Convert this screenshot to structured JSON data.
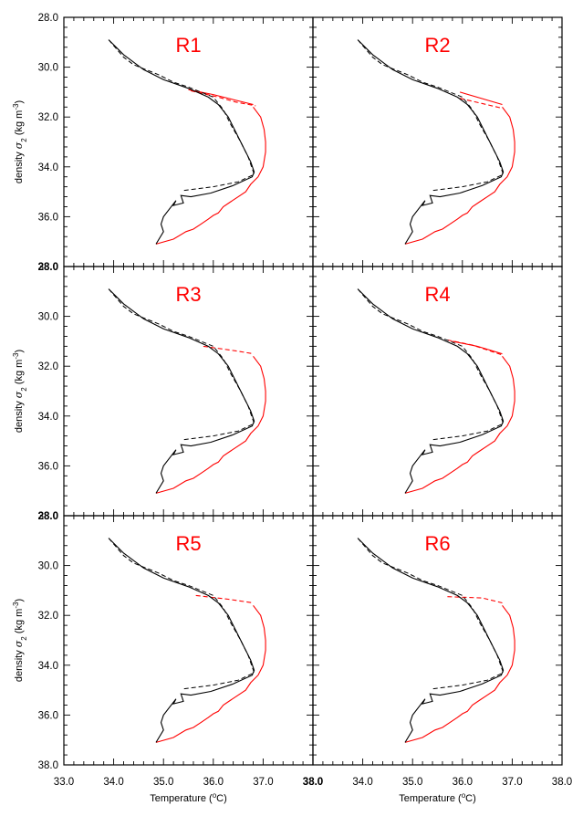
{
  "chart_data": {
    "type": "line",
    "layout": "3x2 panel grid",
    "xlabel": "Temperature (°C)",
    "xlabel_prefix": "Temperature (",
    "xlabel_unit": "o",
    "xlabel_suffix": "C)",
    "ylabel": "density σ₂ (kg m⁻³)",
    "ylabel_prefix": "density ",
    "ylabel_sigma": "σ",
    "ylabel_sub": "2",
    "ylabel_mid": " (kg m",
    "ylabel_sup": "-3",
    "ylabel_end": ")",
    "xlim": [
      33.0,
      38.0
    ],
    "ylim": [
      28.0,
      38.0
    ],
    "y_reversed": true,
    "xticks": [
      "33.0",
      "34.0",
      "35.0",
      "36.0",
      "37.0",
      "38.0"
    ],
    "yticks": [
      "28.0",
      "30.0",
      "32.0",
      "34.0",
      "36.0",
      "38.0"
    ],
    "grid": false,
    "colors": {
      "black_series": "#000000",
      "red_series": "#ff0000"
    },
    "common_black_solid": [
      [
        33.9,
        28.9
      ],
      [
        34.2,
        29.5
      ],
      [
        34.6,
        30.1
      ],
      [
        35.0,
        30.5
      ],
      [
        35.5,
        30.85
      ],
      [
        35.9,
        31.2
      ],
      [
        36.1,
        31.5
      ],
      [
        36.3,
        32.0
      ],
      [
        36.45,
        32.6
      ],
      [
        36.6,
        33.2
      ],
      [
        36.75,
        33.8
      ],
      [
        36.82,
        34.2
      ],
      [
        36.78,
        34.4
      ],
      [
        36.4,
        34.75
      ],
      [
        35.95,
        35.05
      ],
      [
        35.55,
        35.2
      ],
      [
        35.35,
        35.15
      ],
      [
        35.4,
        35.45
      ],
      [
        35.2,
        35.55
      ],
      [
        35.25,
        35.35
      ],
      [
        35.0,
        36.0
      ],
      [
        34.95,
        36.3
      ],
      [
        35.0,
        36.6
      ],
      [
        34.85,
        37.1
      ]
    ],
    "common_black_dashed": [
      [
        33.9,
        28.9
      ],
      [
        34.2,
        29.6
      ],
      [
        34.4,
        29.9
      ],
      [
        34.9,
        30.3
      ],
      [
        35.2,
        30.6
      ],
      [
        35.5,
        30.8
      ],
      [
        36.0,
        31.2
      ],
      [
        36.2,
        31.7
      ],
      [
        36.35,
        32.3
      ],
      [
        36.55,
        33.0
      ],
      [
        36.7,
        33.6
      ],
      [
        36.82,
        34.3
      ],
      [
        36.5,
        34.6
      ],
      [
        36.0,
        34.8
      ],
      [
        35.4,
        34.95
      ]
    ],
    "common_red_lower": [
      [
        34.85,
        37.1
      ],
      [
        35.2,
        36.9
      ],
      [
        35.45,
        36.6
      ],
      [
        35.6,
        36.5
      ],
      [
        35.75,
        36.3
      ],
      [
        35.9,
        36.1
      ],
      [
        36.0,
        35.95
      ],
      [
        36.1,
        35.85
      ],
      [
        36.2,
        35.6
      ],
      [
        36.35,
        35.4
      ],
      [
        36.5,
        35.2
      ],
      [
        36.65,
        35.0
      ],
      [
        36.75,
        34.7
      ],
      [
        36.9,
        34.4
      ],
      [
        37.0,
        34.0
      ],
      [
        37.05,
        33.4
      ],
      [
        37.05,
        33.0
      ],
      [
        37.02,
        32.5
      ],
      [
        36.95,
        32.0
      ],
      [
        36.8,
        31.6
      ]
    ],
    "panels": [
      {
        "title": "R1",
        "red_upper_solid": [
          [
            35.5,
            30.9
          ],
          [
            36.0,
            31.1
          ],
          [
            36.4,
            31.3
          ],
          [
            36.8,
            31.5
          ]
        ],
        "red_upper_dashed": [
          [
            35.55,
            30.95
          ],
          [
            36.1,
            31.2
          ],
          [
            36.45,
            31.4
          ],
          [
            36.85,
            31.55
          ]
        ]
      },
      {
        "title": "R2",
        "red_upper_solid": [
          [
            35.95,
            31.0
          ],
          [
            36.8,
            31.5
          ]
        ],
        "red_upper_dashed": [
          [
            35.95,
            31.25
          ],
          [
            36.8,
            31.65
          ]
        ]
      },
      {
        "title": "R3",
        "red_upper_solid": [],
        "red_upper_dashed": [
          [
            35.8,
            31.2
          ],
          [
            36.5,
            31.4
          ],
          [
            36.8,
            31.5
          ]
        ]
      },
      {
        "title": "R4",
        "red_upper_solid": [
          [
            35.8,
            31.0
          ],
          [
            36.3,
            31.2
          ],
          [
            36.8,
            31.5
          ]
        ],
        "red_upper_dashed": [
          [
            35.7,
            30.95
          ],
          [
            36.2,
            31.15
          ],
          [
            36.8,
            31.55
          ]
        ]
      },
      {
        "title": "R5",
        "red_upper_solid": [
          [
            36.8,
            31.5
          ]
        ],
        "red_upper_dashed": [
          [
            35.65,
            31.2
          ],
          [
            36.3,
            31.35
          ],
          [
            36.8,
            31.5
          ]
        ]
      },
      {
        "title": "R6",
        "red_upper_solid": [
          [
            36.8,
            31.5
          ]
        ],
        "red_upper_dashed": [
          [
            35.7,
            31.25
          ],
          [
            36.4,
            31.3
          ],
          [
            36.8,
            31.5
          ]
        ]
      }
    ]
  }
}
